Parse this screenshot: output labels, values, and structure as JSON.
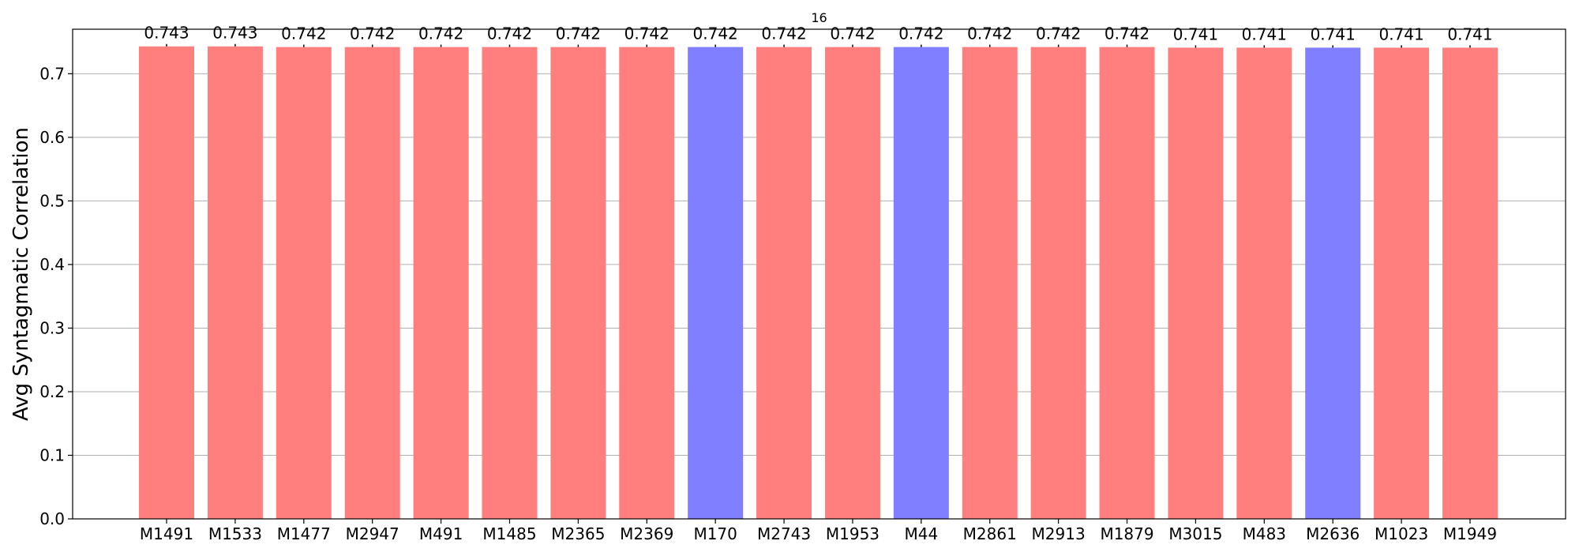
{
  "chart_data": {
    "type": "bar",
    "title": "16",
    "xlabel": "",
    "ylabel": "Avg Syntagmatic Correlation",
    "ylim": [
      0,
      0.77
    ],
    "yticks": [
      0.0,
      0.1,
      0.2,
      0.3,
      0.4,
      0.5,
      0.6,
      0.7
    ],
    "ytick_labels": [
      "0.0",
      "0.1",
      "0.2",
      "0.3",
      "0.4",
      "0.5",
      "0.6",
      "0.7"
    ],
    "grid": "horizontal",
    "categories": [
      "M1491",
      "M1533",
      "M1477",
      "M2947",
      "M491",
      "M1485",
      "M2365",
      "M2369",
      "M170",
      "M2743",
      "M1953",
      "M44",
      "M2861",
      "M2913",
      "M1879",
      "M3015",
      "M483",
      "M2636",
      "M1023",
      "M1949"
    ],
    "values": [
      0.743,
      0.743,
      0.742,
      0.742,
      0.742,
      0.742,
      0.742,
      0.742,
      0.742,
      0.742,
      0.742,
      0.742,
      0.742,
      0.742,
      0.742,
      0.741,
      0.741,
      0.741,
      0.741,
      0.741
    ],
    "value_labels": [
      "0.743",
      "0.743",
      "0.742",
      "0.742",
      "0.742",
      "0.742",
      "0.742",
      "0.742",
      "0.742",
      "0.742",
      "0.742",
      "0.742",
      "0.742",
      "0.742",
      "0.742",
      "0.741",
      "0.741",
      "0.741",
      "0.741",
      "0.741"
    ],
    "bar_groups": [
      "red",
      "red",
      "red",
      "red",
      "red",
      "red",
      "red",
      "red",
      "blue",
      "red",
      "red",
      "blue",
      "red",
      "red",
      "red",
      "red",
      "red",
      "blue",
      "red",
      "red"
    ],
    "colors": {
      "red": "#ff7f7f",
      "blue": "#7f7fff",
      "grid": "#b0b0b0",
      "axis": "#000000"
    }
  }
}
